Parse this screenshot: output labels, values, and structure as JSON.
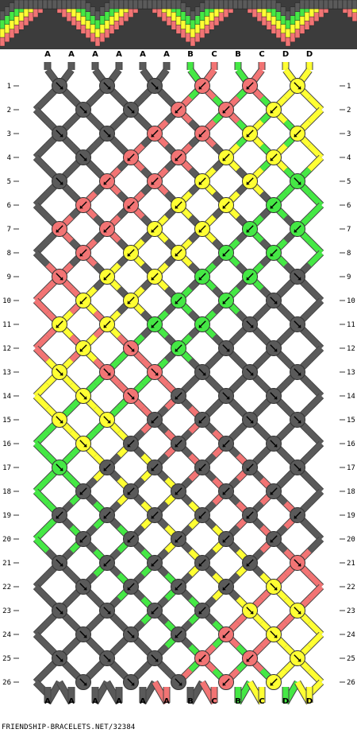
{
  "site_credit": "FRIENDSHIP-BRACELETS.NET/32384",
  "colors": {
    "A": "#5a5a5a",
    "B": "#45e845",
    "C": "#f27474",
    "D": "#ffff33"
  },
  "top_strands": [
    "A",
    "A",
    "A",
    "A",
    "A",
    "A",
    "B",
    "C",
    "B",
    "C",
    "D",
    "D"
  ],
  "bottom_strands": [
    "A",
    "A",
    "A",
    "A",
    "A",
    "A",
    "B",
    "C",
    "B",
    "C",
    "D",
    "D"
  ],
  "row_numbers": [
    "1",
    "2",
    "3",
    "4",
    "5",
    "6",
    "7",
    "8",
    "9",
    "10",
    "11",
    "12",
    "13",
    "14",
    "15",
    "16",
    "17",
    "18",
    "19",
    "20",
    "21",
    "22",
    "23",
    "24",
    "25",
    "26"
  ]
}
